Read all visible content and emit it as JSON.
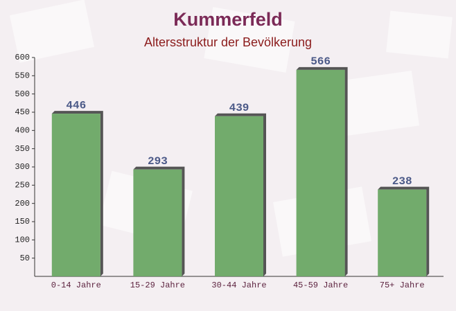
{
  "chart_data": {
    "type": "bar",
    "title": "Kummerfeld",
    "subtitle": "Altersstruktur der Bevölkerung",
    "categories": [
      "0-14 Jahre",
      "15-29 Jahre",
      "30-44 Jahre",
      "45-59 Jahre",
      "75+ Jahre"
    ],
    "values": [
      446,
      293,
      439,
      566,
      238
    ],
    "color": "#6aa664",
    "ylim": [
      0,
      600
    ],
    "yticks": [
      50,
      100,
      150,
      200,
      250,
      300,
      350,
      400,
      450,
      500,
      550,
      600
    ]
  }
}
